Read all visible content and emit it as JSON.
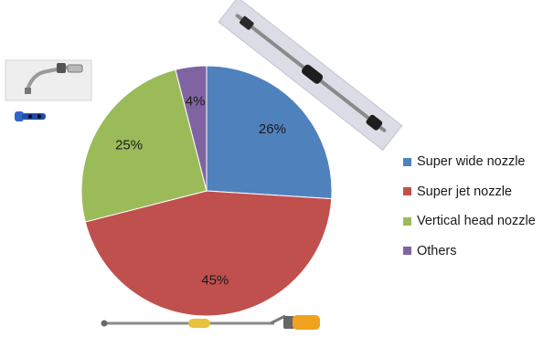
{
  "chart_data": {
    "type": "pie",
    "title": "",
    "slices": [
      {
        "label": "Super wide nozzle",
        "value": 26,
        "color": "#4f81bd"
      },
      {
        "label": "Super jet nozzle",
        "value": 45,
        "color": "#c0504d"
      },
      {
        "label": "Vertical head nozzle",
        "value": 25,
        "color": "#9bbb59"
      },
      {
        "label": "Others",
        "value": 4,
        "color": "#8064a2"
      }
    ],
    "value_suffix": "%",
    "start_angle_deg": 0,
    "direction": "clockwise",
    "legend_position": "right"
  },
  "photos": [
    {
      "name": "bent-pipe-nozzle-photo",
      "description_icon": "nozzle-photo-icon"
    },
    {
      "name": "long-rod-nozzle-photo",
      "description_icon": "nozzle-photo-icon"
    },
    {
      "name": "spray-lance-photo",
      "description_icon": "nozzle-photo-icon"
    }
  ]
}
